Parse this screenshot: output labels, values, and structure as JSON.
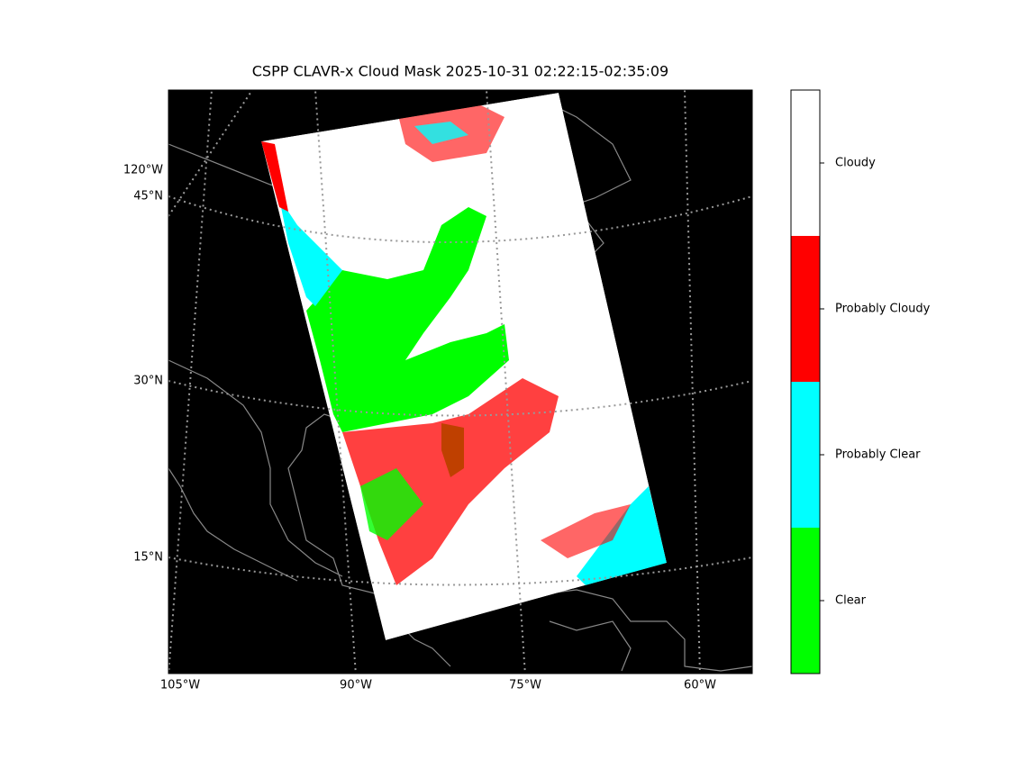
{
  "title": "CSPP CLAVR-x Cloud Mask 2025-10-31 02:22:15-02:35:09",
  "map": {
    "lon_labels": [
      "105°W",
      "90°W",
      "75°W",
      "60°W"
    ],
    "lat_labels": [
      "120°W",
      "45°N",
      "30°N",
      "15°N"
    ]
  },
  "legend": {
    "categories": [
      {
        "label": "Clear",
        "color": "#00ff00"
      },
      {
        "label": "Probably Clear",
        "color": "#00ffff"
      },
      {
        "label": "Probably Cloudy",
        "color": "#ff0000"
      },
      {
        "label": "Cloudy",
        "color": "#ffffff"
      }
    ]
  }
}
